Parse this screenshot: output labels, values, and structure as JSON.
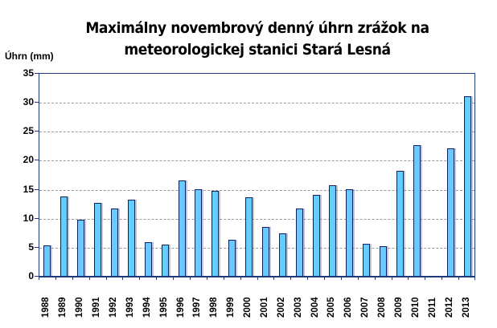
{
  "chart_data": {
    "type": "bar",
    "title": "Maximálny novembrový denný úhrn zrážok na meteorologickej stanici Stará Lesná",
    "title_lines": [
      "Maximálny novembrový denný úhrn zrážok na",
      "meteorologickej stanici Stará Lesná"
    ],
    "xlabel": "",
    "ylabel": "Úhrn (mm)",
    "ylim": [
      0,
      35
    ],
    "yticks": [
      0,
      5,
      10,
      15,
      20,
      25,
      30,
      35
    ],
    "grid": true,
    "legend": null,
    "bar_color": "#66ccff",
    "categories": [
      "1988",
      "1989",
      "1990",
      "1991",
      "1992",
      "1993",
      "1994",
      "1995",
      "1996",
      "1997",
      "1998",
      "1999",
      "2000",
      "2001",
      "2002",
      "2003",
      "2004",
      "2005",
      "2006",
      "2007",
      "2008",
      "2009",
      "2010",
      "2011",
      "2012",
      "2013"
    ],
    "values": [
      5.3,
      13.7,
      9.7,
      12.6,
      11.6,
      13.1,
      5.8,
      5.4,
      16.4,
      15.0,
      14.6,
      6.2,
      13.6,
      8.4,
      7.4,
      11.6,
      14.0,
      15.7,
      15.0,
      5.6,
      5.1,
      18.1,
      22.5,
      0,
      22.0,
      31.0
    ]
  }
}
